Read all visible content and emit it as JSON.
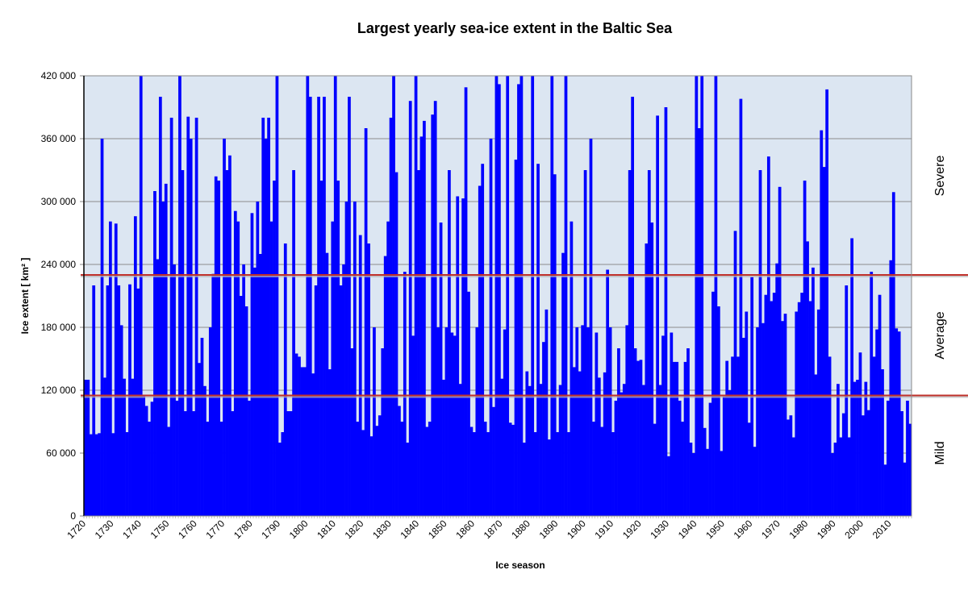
{
  "chart_data": {
    "type": "bar",
    "title": "Largest yearly sea-ice extent in the Baltic Sea",
    "xlabel": "Ice season",
    "ylabel": "Ice extent [ km² ]",
    "ylim": [
      0,
      420000
    ],
    "yticks": [
      0,
      60000,
      120000,
      180000,
      240000,
      300000,
      360000,
      420000
    ],
    "ytick_labels": [
      "0",
      "60 000",
      "120 000",
      "180 000",
      "240 000",
      "300 000",
      "360 000",
      "420 000"
    ],
    "xticks": [
      "1720",
      "1730",
      "1740",
      "1750",
      "1760",
      "1770",
      "1780",
      "1790",
      "1800",
      "1810",
      "1820",
      "1830",
      "1840",
      "1850",
      "1860",
      "1870",
      "1880",
      "1890",
      "1900",
      "1910",
      "1920",
      "1930",
      "1940",
      "1950",
      "1960",
      "1970",
      "1980",
      "1990",
      "2000",
      "2010"
    ],
    "grid": true,
    "start_year": 1720,
    "values_thousand_km2": [
      130,
      130,
      78,
      220,
      78,
      79,
      360,
      132,
      220,
      281,
      79,
      279,
      220,
      182,
      131,
      80,
      221,
      131,
      286,
      217,
      420,
      115,
      105,
      90,
      109,
      310,
      245,
      400,
      300,
      317,
      85,
      380,
      240,
      110,
      420,
      330,
      100,
      381,
      360,
      100,
      380,
      146,
      170,
      124,
      90,
      180,
      231,
      324,
      320,
      90,
      360,
      330,
      344,
      100,
      291,
      281,
      210,
      240,
      200,
      110,
      289,
      237,
      300,
      250,
      380,
      360,
      380,
      281,
      320,
      420,
      70,
      80,
      260,
      100,
      100,
      330,
      155,
      152,
      142,
      142,
      420,
      400,
      136,
      220,
      400,
      320,
      400,
      251,
      140,
      281,
      420,
      320,
      220,
      240,
      300,
      400,
      160,
      300,
      90,
      268,
      82,
      370,
      260,
      76,
      180,
      86,
      96,
      160,
      248,
      281,
      380,
      420,
      328,
      105,
      90,
      233,
      70,
      396,
      172,
      420,
      330,
      362,
      377,
      85,
      90,
      383,
      396,
      180,
      280,
      130,
      180,
      330,
      175,
      172,
      305,
      126,
      303,
      409,
      214,
      85,
      80,
      180,
      315,
      336,
      90,
      80,
      360,
      104,
      420,
      412,
      131,
      178,
      420,
      89,
      87,
      340,
      412,
      420,
      70,
      138,
      124,
      420,
      80,
      336,
      126,
      166,
      197,
      73,
      420,
      326,
      80,
      125,
      251,
      420,
      80,
      281,
      142,
      180,
      138,
      182,
      330,
      180,
      360,
      90,
      175,
      132,
      85,
      137,
      235,
      180,
      80,
      110,
      160,
      118,
      126,
      182,
      330,
      400,
      160,
      148,
      149,
      125,
      260,
      330,
      280,
      88,
      382,
      125,
      172,
      390,
      57,
      175,
      147,
      147,
      110,
      90,
      147,
      160,
      70,
      60,
      420,
      370,
      420,
      84,
      64,
      108,
      214,
      420,
      200,
      62,
      114,
      148,
      120,
      152,
      272,
      152,
      398,
      170,
      195,
      89,
      228,
      66,
      180,
      330,
      184,
      211,
      343,
      205,
      213,
      241,
      314,
      186,
      193,
      92,
      96,
      75,
      195,
      204,
      213,
      320,
      262,
      205,
      237,
      135,
      197,
      368,
      333,
      407,
      152,
      60,
      70,
      126,
      75,
      98,
      220,
      75,
      265,
      128,
      130,
      156,
      96,
      128,
      101,
      233,
      152,
      178,
      211,
      140,
      49,
      110,
      244,
      309,
      179,
      176,
      100,
      51,
      110,
      88
    ],
    "thresholds": [
      115000,
      230000
    ],
    "zones": [
      "Mild",
      "Average",
      "Severe"
    ],
    "colors": {
      "bar": "#0000ff",
      "plot_bg": "#dce6f2",
      "threshold": "#c0302a",
      "grid": "#8c8c8c"
    }
  }
}
